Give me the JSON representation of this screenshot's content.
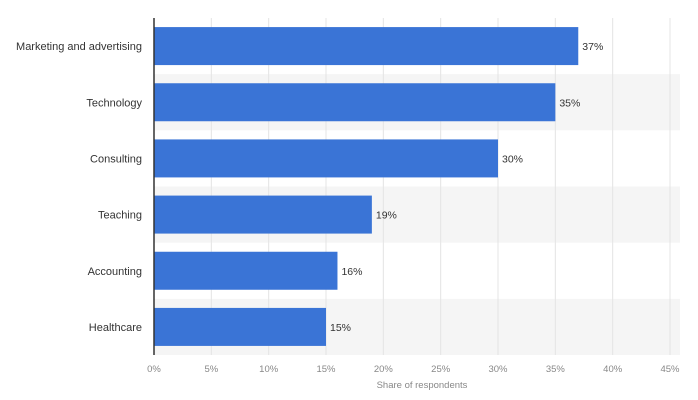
{
  "chart_data": {
    "type": "bar",
    "orientation": "horizontal",
    "categories": [
      "Marketing and advertising",
      "Technology",
      "Consulting",
      "Teaching",
      "Accounting",
      "Healthcare"
    ],
    "values": [
      37,
      35,
      30,
      19,
      16,
      15
    ],
    "value_labels": [
      "37%",
      "35%",
      "30%",
      "19%",
      "16%",
      "15%"
    ],
    "xlabel": "Share of respondents",
    "ylabel": "",
    "xlim": [
      0,
      45
    ],
    "x_ticks": [
      0,
      5,
      10,
      15,
      20,
      25,
      30,
      35,
      40,
      45
    ],
    "x_tick_labels": [
      "0%",
      "5%",
      "10%",
      "15%",
      "20%",
      "25%",
      "30%",
      "35%",
      "40%",
      "45%"
    ],
    "grid": true,
    "legend": "none",
    "colors": {
      "bar": "#3a74d6",
      "band_alt": "#f5f5f5",
      "grid": "#e4e4e4",
      "axis": "#333333"
    }
  }
}
